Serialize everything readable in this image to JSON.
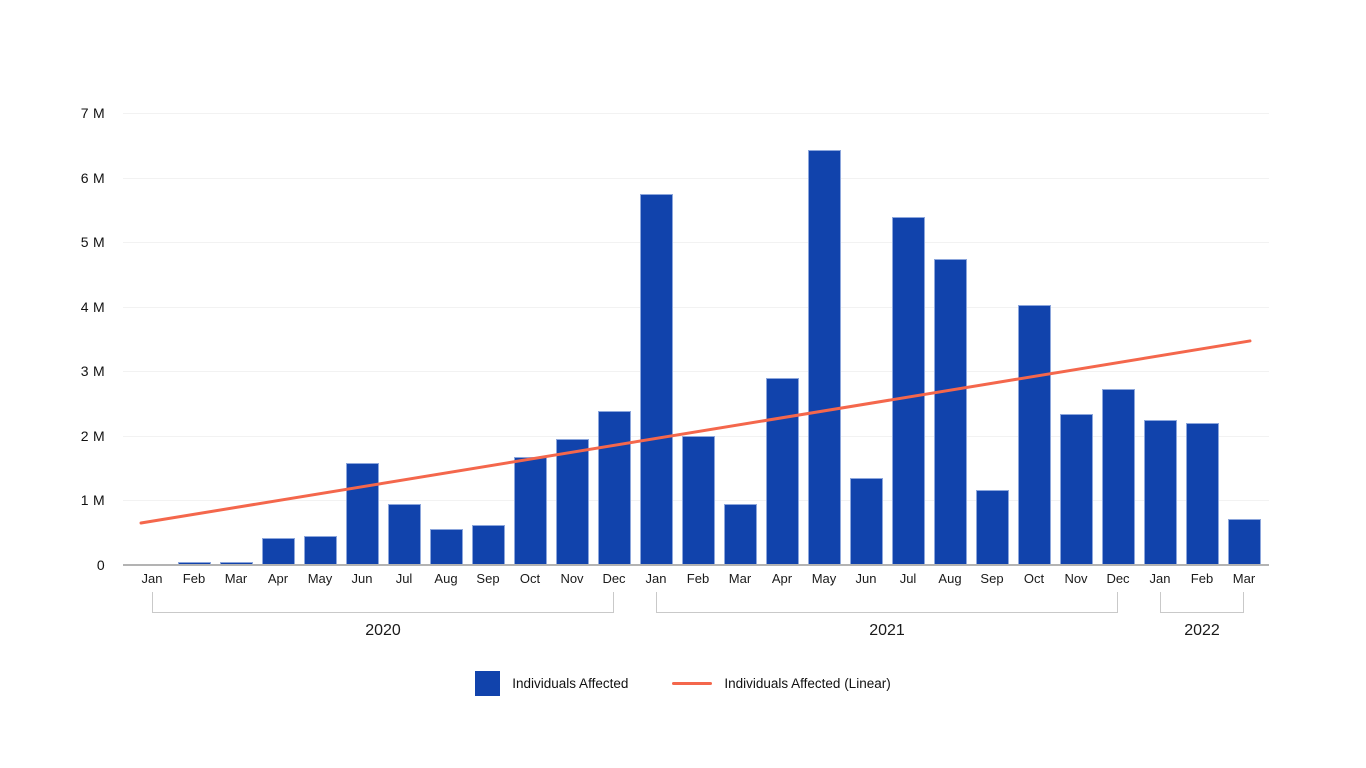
{
  "chart_data": {
    "type": "bar",
    "title": "",
    "xlabel": "",
    "ylabel": "",
    "ylim": [
      0,
      7000000
    ],
    "grid": true,
    "legend_position": "bottom",
    "y_ticks": [
      {
        "label": "0",
        "value": 0
      },
      {
        "label": "1 M",
        "value": 1000000
      },
      {
        "label": "2 M",
        "value": 2000000
      },
      {
        "label": "3 M",
        "value": 3000000
      },
      {
        "label": "4 M",
        "value": 4000000
      },
      {
        "label": "5 M",
        "value": 5000000
      },
      {
        "label": "6 M",
        "value": 6000000
      },
      {
        "label": "7 M",
        "value": 7000000
      }
    ],
    "categories": [
      "Jan",
      "Feb",
      "Mar",
      "Apr",
      "May",
      "Jun",
      "Jul",
      "Aug",
      "Sep",
      "Oct",
      "Nov",
      "Dec",
      "Jan",
      "Feb",
      "Mar",
      "Apr",
      "May",
      "Jun",
      "Jul",
      "Aug",
      "Sep",
      "Oct",
      "Nov",
      "Dec",
      "Jan",
      "Feb",
      "Mar"
    ],
    "year_groups": [
      {
        "label": "2020",
        "start": 0,
        "end": 11
      },
      {
        "label": "2021",
        "start": 12,
        "end": 23
      },
      {
        "label": "2022",
        "start": 24,
        "end": 26
      }
    ],
    "series": [
      {
        "name": "Individuals Affected",
        "type": "bar",
        "color": "#1143AC",
        "border_color": "#8CA6DC",
        "values": [
          10000,
          50000,
          50000,
          420000,
          450000,
          1580000,
          940000,
          560000,
          620000,
          1670000,
          1950000,
          2380000,
          5740000,
          2000000,
          950000,
          2890000,
          6420000,
          1340000,
          5390000,
          4740000,
          1160000,
          4030000,
          2340000,
          2730000,
          2240000,
          2200000,
          720000
        ]
      },
      {
        "name": "Individuals Affected (Linear)",
        "type": "line",
        "color": "#F4674C",
        "start_value": 650000,
        "end_value": 3470000
      }
    ],
    "colors": {
      "gridline": "#F2F2F2",
      "axis_line": "#B3B3B3",
      "bracket": "#C9C9C9",
      "text": "#111111"
    }
  }
}
